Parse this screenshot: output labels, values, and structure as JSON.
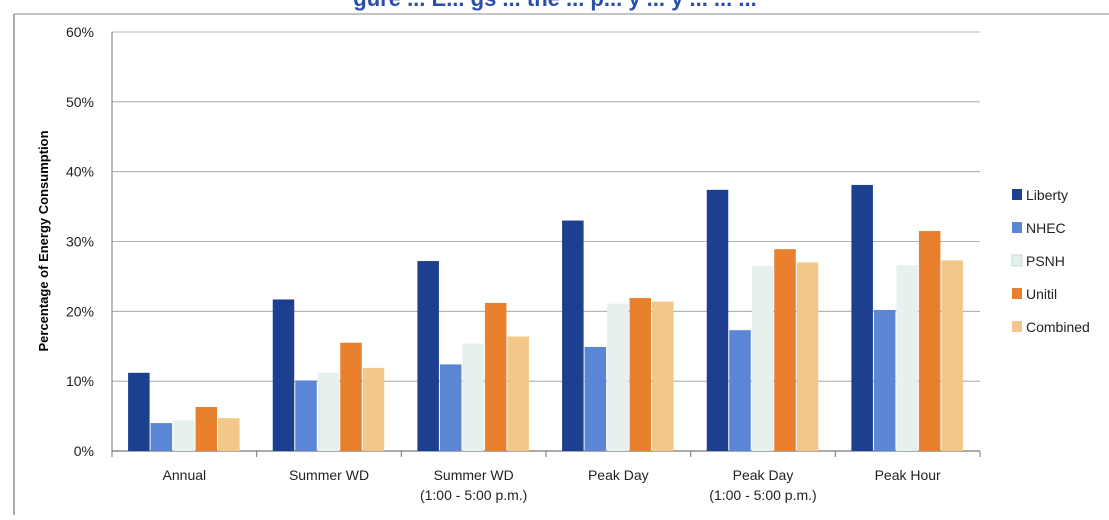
{
  "chart_data": {
    "type": "bar",
    "title_partial": "gure ... E... gs ... the ... p... y ... y ... ... ...",
    "ylabel": "Percentage of Energy Consumption",
    "xlabel": "",
    "ylim": [
      0,
      60
    ],
    "yticks": [
      "0%",
      "10%",
      "20%",
      "30%",
      "40%",
      "50%",
      "60%"
    ],
    "grid": true,
    "legend_position": "right",
    "categories": [
      [
        "Annual"
      ],
      [
        "Summer WD"
      ],
      [
        "Summer WD",
        "(1:00 - 5:00 p.m.)"
      ],
      [
        "Peak Day"
      ],
      [
        "Peak Day",
        "(1:00 - 5:00 p.m.)"
      ],
      [
        "Peak Hour"
      ]
    ],
    "series": [
      {
        "name": "Liberty",
        "color": "#1c3f8f",
        "values": [
          11.2,
          21.7,
          27.2,
          33.0,
          37.4,
          38.1
        ]
      },
      {
        "name": "NHEC",
        "color": "#5b86d6",
        "values": [
          4.0,
          10.1,
          12.4,
          14.9,
          17.3,
          20.2
        ]
      },
      {
        "name": "PSNH",
        "color": "#e6f1ef",
        "values": [
          4.4,
          11.2,
          15.4,
          21.1,
          26.5,
          26.6
        ]
      },
      {
        "name": "Unitil",
        "color": "#e8802e",
        "values": [
          6.3,
          15.5,
          21.2,
          21.9,
          28.9,
          31.5
        ]
      },
      {
        "name": "Combined",
        "color": "#f2c88a",
        "values": [
          4.7,
          11.9,
          16.4,
          21.4,
          27.0,
          27.3
        ]
      }
    ]
  }
}
